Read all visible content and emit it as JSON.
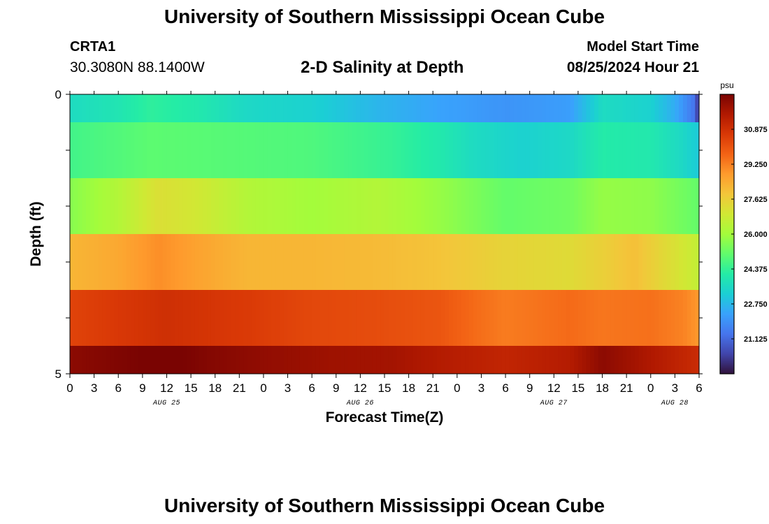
{
  "header": {
    "title": "University of Southern Mississippi Ocean Cube",
    "station": "CRTA1",
    "coords": "30.3080N  88.1400W",
    "subtitle": "2-D Salinity at Depth",
    "model_start_label": "Model Start Time",
    "model_start_value": "08/25/2024 Hour 21"
  },
  "footer": {
    "title": "University of Southern Mississippi Ocean Cube"
  },
  "chart_data": {
    "type": "heatmap",
    "title": "2-D Salinity at Depth",
    "xlabel": "Forecast Time(Z)",
    "ylabel": "Depth (ft)",
    "ylim": [
      0,
      5
    ],
    "y_ticks": [
      "0",
      "5"
    ],
    "x_hours_range": [
      0,
      78
    ],
    "x_tick_labels": [
      "0",
      "3",
      "6",
      "9",
      "12",
      "15",
      "18",
      "21",
      "0",
      "3",
      "6",
      "9",
      "12",
      "15",
      "18",
      "21",
      "0",
      "3",
      "6",
      "9",
      "12",
      "15",
      "18",
      "21",
      "0",
      "3",
      "6"
    ],
    "date_labels": [
      {
        "text": "AUG 25",
        "hour": 12
      },
      {
        "text": "AUG 26",
        "hour": 36
      },
      {
        "text": "AUG 27",
        "hour": 60
      },
      {
        "text": "AUG 28",
        "hour": 75
      }
    ],
    "colorbar": {
      "unit": "psu",
      "min": 19.5,
      "max": 32.5,
      "ticks": [
        "30.875",
        "29.250",
        "27.625",
        "26.000",
        "24.375",
        "22.750",
        "21.125"
      ],
      "colors": [
        "#30123b",
        "#4145ab",
        "#4675ed",
        "#39a2fc",
        "#1bcfd4",
        "#24eca6",
        "#61fc6c",
        "#a4fc3b",
        "#d1e834",
        "#f3c63a",
        "#fe9b2d",
        "#f36315",
        "#d93806",
        "#b11901",
        "#7a0402"
      ]
    },
    "layers": [
      {
        "depth_range": [
          0.0,
          0.5
        ],
        "hours": [
          0,
          6,
          10,
          16,
          22,
          30,
          38,
          46,
          54,
          62,
          66,
          72,
          75,
          77.5,
          78
        ],
        "values": [
          23.6,
          23.9,
          24.3,
          24.0,
          23.5,
          23.3,
          22.7,
          22.3,
          22.0,
          22.2,
          23.6,
          23.3,
          22.5,
          21.3,
          19.8
        ]
      },
      {
        "depth_range": [
          0.5,
          1.5
        ],
        "hours": [
          0,
          10,
          20,
          30,
          40,
          46,
          50,
          56,
          62,
          66,
          72,
          76,
          78
        ],
        "values": [
          24.6,
          25.0,
          24.9,
          24.8,
          24.4,
          24.0,
          23.6,
          23.3,
          23.5,
          24.1,
          24.0,
          23.5,
          23.1
        ]
      },
      {
        "depth_range": [
          1.5,
          2.5
        ],
        "hours": [
          0,
          6,
          11,
          16,
          22,
          30,
          38,
          46,
          54,
          62,
          66,
          72,
          76,
          78
        ],
        "values": [
          25.6,
          26.3,
          27.2,
          26.9,
          26.3,
          26.0,
          26.3,
          25.8,
          25.1,
          25.3,
          25.8,
          25.7,
          25.3,
          25.1
        ]
      },
      {
        "depth_range": [
          2.5,
          3.5
        ],
        "hours": [
          0,
          6,
          11,
          16,
          22,
          30,
          38,
          46,
          54,
          62,
          66,
          70,
          74,
          78
        ],
        "values": [
          28.2,
          28.5,
          29.0,
          28.6,
          28.2,
          28.2,
          28.1,
          27.9,
          27.5,
          27.3,
          27.6,
          28.0,
          27.3,
          26.6
        ]
      },
      {
        "depth_range": [
          3.5,
          4.5
        ],
        "hours": [
          0,
          12,
          22,
          30,
          38,
          46,
          50,
          54,
          62,
          66,
          72,
          76,
          78
        ],
        "values": [
          30.4,
          30.9,
          30.6,
          30.3,
          30.2,
          30.0,
          29.6,
          29.3,
          29.6,
          29.4,
          29.5,
          29.2,
          28.8
        ]
      },
      {
        "depth_range": [
          4.5,
          5.0
        ],
        "hours": [
          0,
          6,
          12,
          18,
          24,
          32,
          40,
          46,
          54,
          62,
          66,
          70,
          74,
          78
        ],
        "values": [
          32.2,
          32.4,
          32.6,
          32.3,
          32.1,
          31.9,
          31.8,
          31.5,
          31.2,
          31.5,
          32.2,
          31.8,
          31.4,
          31.0
        ]
      }
    ]
  }
}
